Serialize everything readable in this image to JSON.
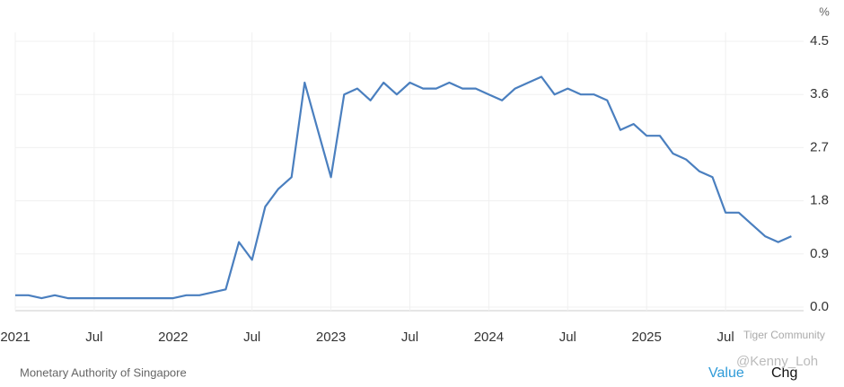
{
  "chart_data": {
    "type": "line",
    "unit": "%",
    "x": [
      "2021-01",
      "2021-02",
      "2021-03",
      "2021-04",
      "2021-05",
      "2021-06",
      "2021-07",
      "2021-08",
      "2021-09",
      "2021-10",
      "2021-11",
      "2021-12",
      "2022-01",
      "2022-02",
      "2022-03",
      "2022-04",
      "2022-05",
      "2022-06",
      "2022-07",
      "2022-08",
      "2022-09",
      "2022-10",
      "2022-11",
      "2022-12",
      "2023-01",
      "2023-02",
      "2023-03",
      "2023-04",
      "2023-05",
      "2023-06",
      "2023-07",
      "2023-08",
      "2023-09",
      "2023-10",
      "2023-11",
      "2023-12",
      "2024-01",
      "2024-02",
      "2024-03",
      "2024-04",
      "2024-05",
      "2024-06",
      "2024-07",
      "2024-08",
      "2024-09",
      "2024-10",
      "2024-11",
      "2024-12",
      "2025-01",
      "2025-02",
      "2025-03",
      "2025-04",
      "2025-05",
      "2025-06",
      "2025-07",
      "2025-08",
      "2025-09",
      "2025-10",
      "2025-11",
      "2025-12"
    ],
    "series": [
      {
        "name": "Value",
        "color": "#4a7fbf",
        "values": [
          0.2,
          0.2,
          0.15,
          0.2,
          0.15,
          0.15,
          0.15,
          0.15,
          0.15,
          0.15,
          0.15,
          0.15,
          0.15,
          0.2,
          0.2,
          0.25,
          0.3,
          1.1,
          0.8,
          1.7,
          2.0,
          2.2,
          3.8,
          3.0,
          2.2,
          3.6,
          3.7,
          3.5,
          3.8,
          3.6,
          3.8,
          3.7,
          3.7,
          3.8,
          3.7,
          3.7,
          3.6,
          3.5,
          3.7,
          3.8,
          3.9,
          3.6,
          3.7,
          3.6,
          3.6,
          3.5,
          3.0,
          3.1,
          2.9,
          2.9,
          2.6,
          2.5,
          2.3,
          2.2,
          1.6,
          1.6,
          1.4,
          1.2,
          1.1,
          1.2
        ]
      }
    ],
    "xticks": [
      {
        "value": "2021-01",
        "label": "2021"
      },
      {
        "value": "2021-07",
        "label": "Jul"
      },
      {
        "value": "2022-01",
        "label": "2022"
      },
      {
        "value": "2022-07",
        "label": "Jul"
      },
      {
        "value": "2023-01",
        "label": "2023"
      },
      {
        "value": "2023-07",
        "label": "Jul"
      },
      {
        "value": "2024-01",
        "label": "2024"
      },
      {
        "value": "2024-07",
        "label": "Jul"
      },
      {
        "value": "2025-01",
        "label": "2025"
      },
      {
        "value": "2025-07",
        "label": "Jul"
      }
    ],
    "ylim": [
      0,
      4.5
    ],
    "yticks": [
      {
        "value": 0,
        "label": "0.0"
      },
      0.9,
      1.8,
      2.7,
      3.6,
      4.5
    ],
    "grid": true
  },
  "source": "Monetary Authority of Singapore",
  "buttons": [
    "Value",
    "Chg"
  ],
  "watermark": [
    "Tiger Community",
    "@Kenny_Loh"
  ]
}
